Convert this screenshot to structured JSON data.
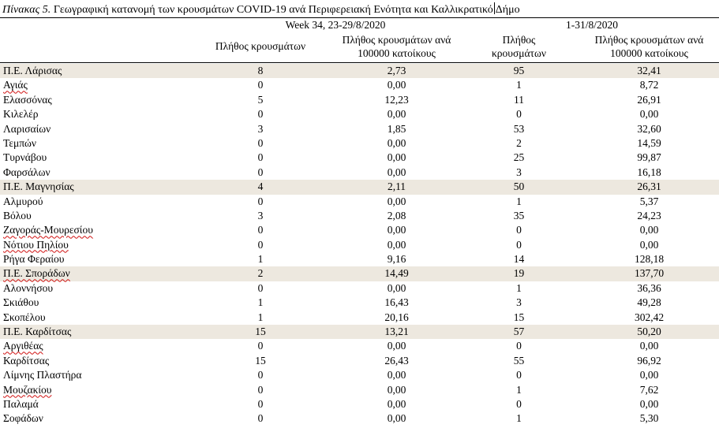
{
  "title": {
    "label": "Πίνακας 5.",
    "text": "Γεωγραφική κατανομή των κρουσμάτων COVID-19 ανά Περιφερειακή Ενότητα και Καλλικρατικό",
    "text_after_cursor": "Δήμο"
  },
  "header": {
    "period_week": "Week 34, 23-29/8/2020",
    "period_month": "1-31/8/2020",
    "col_cases_week": "Πλήθος κρουσμάτων",
    "col_rate_week": "Πλήθος κρουσμάτων ανά 100000 κατοίκους",
    "col_cases_month": "Πλήθος κρουσμάτων",
    "col_rate_month": "Πλήθος κρουσμάτων ανά 100000 κατοίκους"
  },
  "rows": [
    {
      "name": "Π.Ε. Λάρισας",
      "cases_week": "8",
      "rate_week": "2,73",
      "cases_month": "95",
      "rate_month": "32,41",
      "shaded": true
    },
    {
      "name": "Αγιάς",
      "cases_week": "0",
      "rate_week": "0,00",
      "cases_month": "1",
      "rate_month": "8,72",
      "underline": true
    },
    {
      "name": "Ελασσόνας",
      "cases_week": "5",
      "rate_week": "12,23",
      "cases_month": "11",
      "rate_month": "26,91"
    },
    {
      "name": "Κιλελέρ",
      "cases_week": "0",
      "rate_week": "0,00",
      "cases_month": "0",
      "rate_month": "0,00"
    },
    {
      "name": "Λαρισαίων",
      "cases_week": "3",
      "rate_week": "1,85",
      "cases_month": "53",
      "rate_month": "32,60"
    },
    {
      "name": "Τεμπών",
      "cases_week": "0",
      "rate_week": "0,00",
      "cases_month": "2",
      "rate_month": "14,59"
    },
    {
      "name": "Τυρνάβου",
      "cases_week": "0",
      "rate_week": "0,00",
      "cases_month": "25",
      "rate_month": "99,87"
    },
    {
      "name": "Φαρσάλων",
      "cases_week": "0",
      "rate_week": "0,00",
      "cases_month": "3",
      "rate_month": "16,18"
    },
    {
      "name": "Π.Ε. Μαγνησίας",
      "cases_week": "4",
      "rate_week": "2,11",
      "cases_month": "50",
      "rate_month": "26,31",
      "shaded": true
    },
    {
      "name": "Αλμυρού",
      "cases_week": "0",
      "rate_week": "0,00",
      "cases_month": "1",
      "rate_month": "5,37"
    },
    {
      "name": "Βόλου",
      "cases_week": "3",
      "rate_week": "2,08",
      "cases_month": "35",
      "rate_month": "24,23"
    },
    {
      "name": "Ζαγοράς-Μουρεσίου",
      "cases_week": "0",
      "rate_week": "0,00",
      "cases_month": "0",
      "rate_month": "0,00",
      "underline": true
    },
    {
      "name": "Νότιου Πηλίου",
      "cases_week": "0",
      "rate_week": "0,00",
      "cases_month": "0",
      "rate_month": "0,00",
      "underline": true
    },
    {
      "name": "Ρήγα Φεραίου",
      "cases_week": "1",
      "rate_week": "9,16",
      "cases_month": "14",
      "rate_month": "128,18"
    },
    {
      "name": "Π.Ε. Σποράδων",
      "cases_week": "2",
      "rate_week": "14,49",
      "cases_month": "19",
      "rate_month": "137,70",
      "shaded": true,
      "underline": true
    },
    {
      "name": "Αλοννήσου",
      "cases_week": "0",
      "rate_week": "0,00",
      "cases_month": "1",
      "rate_month": "36,36"
    },
    {
      "name": "Σκιάθου",
      "cases_week": "1",
      "rate_week": "16,43",
      "cases_month": "3",
      "rate_month": "49,28"
    },
    {
      "name": "Σκοπέλου",
      "cases_week": "1",
      "rate_week": "20,16",
      "cases_month": "15",
      "rate_month": "302,42"
    },
    {
      "name": "Π.Ε. Καρδίτσας",
      "cases_week": "15",
      "rate_week": "13,21",
      "cases_month": "57",
      "rate_month": "50,20",
      "shaded": true
    },
    {
      "name": "Αργιθέας",
      "cases_week": "0",
      "rate_week": "0,00",
      "cases_month": "0",
      "rate_month": "0,00",
      "underline": true
    },
    {
      "name": "Καρδίτσας",
      "cases_week": "15",
      "rate_week": "26,43",
      "cases_month": "55",
      "rate_month": "96,92"
    },
    {
      "name": "Λίμνης Πλαστήρα",
      "cases_week": "0",
      "rate_week": "0,00",
      "cases_month": "0",
      "rate_month": "0,00"
    },
    {
      "name": "Μουζακίου",
      "cases_week": "0",
      "rate_week": "0,00",
      "cases_month": "1",
      "rate_month": "7,62",
      "underline": true
    },
    {
      "name": "Παλαμά",
      "cases_week": "0",
      "rate_week": "0,00",
      "cases_month": "0",
      "rate_month": "0,00"
    },
    {
      "name": "Σοφάδων",
      "cases_week": "0",
      "rate_week": "0,00",
      "cases_month": "1",
      "rate_month": "5,30"
    }
  ]
}
